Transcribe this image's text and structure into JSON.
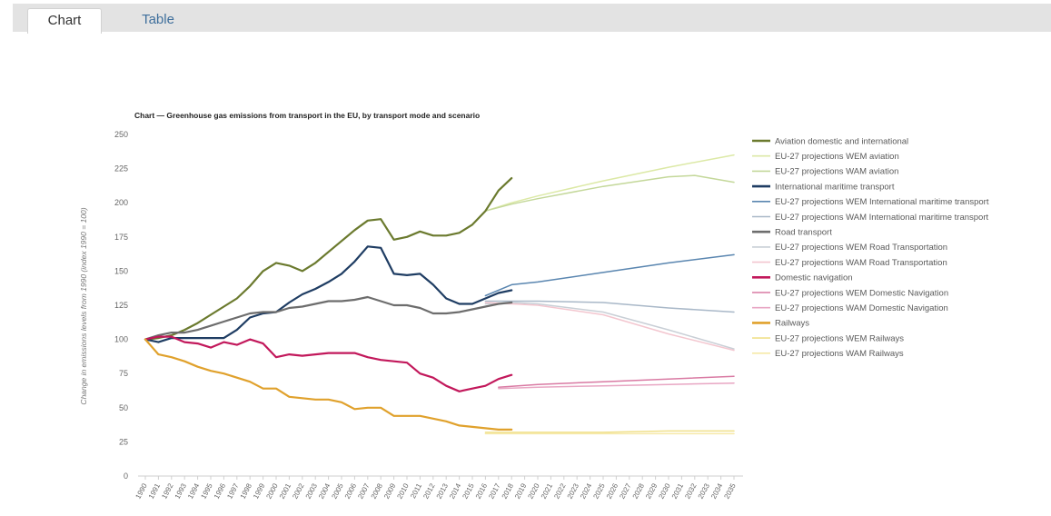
{
  "tabs": [
    {
      "label": "Chart",
      "active": true
    },
    {
      "label": "Table",
      "active": false
    }
  ],
  "chart_data": {
    "type": "line",
    "title": "Chart — Greenhouse gas emissions from transport in the EU, by transport mode and scenario",
    "xlabel": "",
    "ylabel": "Change in emissions levels from 1990 (index 1990 = 100)",
    "ylim": [
      0,
      250
    ],
    "yticks": [
      0,
      25,
      50,
      75,
      100,
      125,
      150,
      175,
      200,
      225,
      250
    ],
    "x": [
      "1990",
      "1991",
      "1992",
      "1993",
      "1994",
      "1995",
      "1996",
      "1997",
      "1998",
      "1999",
      "2000",
      "2001",
      "2002",
      "2003",
      "2004",
      "2005",
      "2006",
      "2007",
      "2008",
      "2009",
      "2010",
      "2011",
      "2012",
      "2013",
      "2014",
      "2015",
      "2016",
      "2017",
      "2018",
      "2019",
      "2020",
      "2021",
      "2022",
      "2023",
      "2024",
      "2025",
      "2026",
      "2027",
      "2028",
      "2029",
      "2030",
      "2031",
      "2032",
      "2033",
      "2034",
      "2035"
    ],
    "grid": false,
    "legend_position": "right",
    "series": [
      {
        "name": "Aviation domestic and international",
        "color": "#6b7a2e",
        "kind": "historic",
        "points": [
          [
            1990,
            100
          ],
          [
            1991,
            101
          ],
          [
            1992,
            103
          ],
          [
            1993,
            107
          ],
          [
            1994,
            112
          ],
          [
            1995,
            118
          ],
          [
            1996,
            124
          ],
          [
            1997,
            130
          ],
          [
            1998,
            139
          ],
          [
            1999,
            150
          ],
          [
            2000,
            156
          ],
          [
            2001,
            154
          ],
          [
            2002,
            150
          ],
          [
            2003,
            156
          ],
          [
            2004,
            164
          ],
          [
            2005,
            172
          ],
          [
            2006,
            180
          ],
          [
            2007,
            187
          ],
          [
            2008,
            188
          ],
          [
            2009,
            173
          ],
          [
            2010,
            175
          ],
          [
            2011,
            179
          ],
          [
            2012,
            176
          ],
          [
            2013,
            176
          ],
          [
            2014,
            178
          ],
          [
            2015,
            184
          ],
          [
            2016,
            194
          ],
          [
            2017,
            209
          ],
          [
            2018,
            218
          ]
        ]
      },
      {
        "name": "EU-27 projections WEM aviation",
        "color": "#dce9a6",
        "kind": "projection",
        "points": [
          [
            2016,
            194
          ],
          [
            2018,
            200
          ],
          [
            2020,
            205
          ],
          [
            2025,
            216
          ],
          [
            2030,
            226
          ],
          [
            2035,
            235
          ]
        ]
      },
      {
        "name": "EU-27 projections WAM aviation",
        "color": "#c4d89a",
        "kind": "projection",
        "points": [
          [
            2016,
            194
          ],
          [
            2018,
            199
          ],
          [
            2020,
            203
          ],
          [
            2025,
            212
          ],
          [
            2030,
            219
          ],
          [
            2032,
            220
          ],
          [
            2035,
            215
          ]
        ]
      },
      {
        "name": "International maritime transport",
        "color": "#1f3d63",
        "kind": "historic",
        "points": [
          [
            1990,
            100
          ],
          [
            1991,
            98
          ],
          [
            1992,
            101
          ],
          [
            1993,
            101
          ],
          [
            1994,
            101
          ],
          [
            1995,
            101
          ],
          [
            1996,
            101
          ],
          [
            1997,
            107
          ],
          [
            1998,
            116
          ],
          [
            1999,
            119
          ],
          [
            2000,
            120
          ],
          [
            2001,
            127
          ],
          [
            2002,
            133
          ],
          [
            2003,
            137
          ],
          [
            2004,
            142
          ],
          [
            2005,
            148
          ],
          [
            2006,
            157
          ],
          [
            2007,
            168
          ],
          [
            2008,
            167
          ],
          [
            2009,
            148
          ],
          [
            2010,
            147
          ],
          [
            2011,
            148
          ],
          [
            2012,
            140
          ],
          [
            2013,
            130
          ],
          [
            2014,
            126
          ],
          [
            2015,
            126
          ],
          [
            2016,
            130
          ],
          [
            2017,
            134
          ],
          [
            2018,
            136
          ]
        ]
      },
      {
        "name": "EU-27 projections WEM International maritime transport",
        "color": "#5a86b0",
        "kind": "projection",
        "points": [
          [
            2016,
            132
          ],
          [
            2018,
            140
          ],
          [
            2020,
            142
          ],
          [
            2025,
            149
          ],
          [
            2030,
            156
          ],
          [
            2035,
            162
          ]
        ]
      },
      {
        "name": "EU-27 projections WAM International maritime transport",
        "color": "#a9b8c8",
        "kind": "projection",
        "points": [
          [
            2016,
            128
          ],
          [
            2018,
            128
          ],
          [
            2020,
            128
          ],
          [
            2025,
            127
          ],
          [
            2030,
            123
          ],
          [
            2035,
            120
          ]
        ]
      },
      {
        "name": "Road transport",
        "color": "#6d6d6d",
        "kind": "historic",
        "points": [
          [
            1990,
            100
          ],
          [
            1991,
            103
          ],
          [
            1992,
            105
          ],
          [
            1993,
            105
          ],
          [
            1994,
            107
          ],
          [
            1995,
            110
          ],
          [
            1996,
            113
          ],
          [
            1997,
            116
          ],
          [
            1998,
            119
          ],
          [
            1999,
            120
          ],
          [
            2000,
            120
          ],
          [
            2001,
            123
          ],
          [
            2002,
            124
          ],
          [
            2003,
            126
          ],
          [
            2004,
            128
          ],
          [
            2005,
            128
          ],
          [
            2006,
            129
          ],
          [
            2007,
            131
          ],
          [
            2008,
            128
          ],
          [
            2009,
            125
          ],
          [
            2010,
            125
          ],
          [
            2011,
            123
          ],
          [
            2012,
            119
          ],
          [
            2013,
            119
          ],
          [
            2014,
            120
          ],
          [
            2015,
            122
          ],
          [
            2016,
            124
          ],
          [
            2017,
            126
          ],
          [
            2018,
            127
          ]
        ]
      },
      {
        "name": "EU-27 projections WEM Road Transportation",
        "color": "#c9cfd6",
        "kind": "projection",
        "points": [
          [
            2016,
            126
          ],
          [
            2018,
            127
          ],
          [
            2020,
            126
          ],
          [
            2025,
            120
          ],
          [
            2030,
            107
          ],
          [
            2035,
            93
          ]
        ]
      },
      {
        "name": "EU-27 projections WAM Road Transportation",
        "color": "#f3c6cf",
        "kind": "projection",
        "points": [
          [
            2016,
            127
          ],
          [
            2018,
            126
          ],
          [
            2020,
            125
          ],
          [
            2025,
            118
          ],
          [
            2030,
            104
          ],
          [
            2035,
            92
          ]
        ]
      },
      {
        "name": "Domestic navigation",
        "color": "#c2185b",
        "kind": "historic",
        "points": [
          [
            1990,
            100
          ],
          [
            1991,
            102
          ],
          [
            1992,
            102
          ],
          [
            1993,
            98
          ],
          [
            1994,
            97
          ],
          [
            1995,
            94
          ],
          [
            1996,
            98
          ],
          [
            1997,
            96
          ],
          [
            1998,
            100
          ],
          [
            1999,
            97
          ],
          [
            2000,
            87
          ],
          [
            2001,
            89
          ],
          [
            2002,
            88
          ],
          [
            2003,
            89
          ],
          [
            2004,
            90
          ],
          [
            2005,
            90
          ],
          [
            2006,
            90
          ],
          [
            2007,
            87
          ],
          [
            2008,
            85
          ],
          [
            2009,
            84
          ],
          [
            2010,
            83
          ],
          [
            2011,
            75
          ],
          [
            2012,
            72
          ],
          [
            2013,
            66
          ],
          [
            2014,
            62
          ],
          [
            2015,
            64
          ],
          [
            2016,
            66
          ],
          [
            2017,
            71
          ],
          [
            2018,
            74
          ]
        ]
      },
      {
        "name": "EU-27 projections WEM Domestic Navigation",
        "color": "#d97aa3",
        "kind": "projection",
        "points": [
          [
            2017,
            65
          ],
          [
            2020,
            67
          ],
          [
            2025,
            69
          ],
          [
            2030,
            71
          ],
          [
            2035,
            73
          ]
        ]
      },
      {
        "name": "EU-27 projections WAM Domestic Navigation",
        "color": "#e8a6c3",
        "kind": "projection",
        "points": [
          [
            2017,
            64
          ],
          [
            2020,
            65
          ],
          [
            2025,
            66
          ],
          [
            2030,
            67
          ],
          [
            2035,
            68
          ]
        ]
      },
      {
        "name": "Railways",
        "color": "#e0a12c",
        "kind": "historic",
        "points": [
          [
            1990,
            100
          ],
          [
            1991,
            89
          ],
          [
            1992,
            87
          ],
          [
            1993,
            84
          ],
          [
            1994,
            80
          ],
          [
            1995,
            77
          ],
          [
            1996,
            75
          ],
          [
            1997,
            72
          ],
          [
            1998,
            69
          ],
          [
            1999,
            64
          ],
          [
            2000,
            64
          ],
          [
            2001,
            58
          ],
          [
            2002,
            57
          ],
          [
            2003,
            56
          ],
          [
            2004,
            56
          ],
          [
            2005,
            54
          ],
          [
            2006,
            49
          ],
          [
            2007,
            50
          ],
          [
            2008,
            50
          ],
          [
            2009,
            44
          ],
          [
            2010,
            44
          ],
          [
            2011,
            44
          ],
          [
            2012,
            42
          ],
          [
            2013,
            40
          ],
          [
            2014,
            37
          ],
          [
            2015,
            36
          ],
          [
            2016,
            35
          ],
          [
            2017,
            34
          ],
          [
            2018,
            34
          ]
        ]
      },
      {
        "name": "EU-27 projections WEM Railways",
        "color": "#f0e08a",
        "kind": "projection",
        "points": [
          [
            2016,
            32
          ],
          [
            2018,
            32
          ],
          [
            2020,
            32
          ],
          [
            2025,
            32
          ],
          [
            2030,
            33
          ],
          [
            2035,
            33
          ]
        ]
      },
      {
        "name": "EU-27 projections WAM Railways",
        "color": "#f6e9a8",
        "kind": "projection",
        "points": [
          [
            2016,
            31
          ],
          [
            2018,
            31
          ],
          [
            2020,
            31
          ],
          [
            2025,
            31
          ],
          [
            2030,
            31
          ],
          [
            2035,
            31
          ]
        ]
      }
    ]
  }
}
